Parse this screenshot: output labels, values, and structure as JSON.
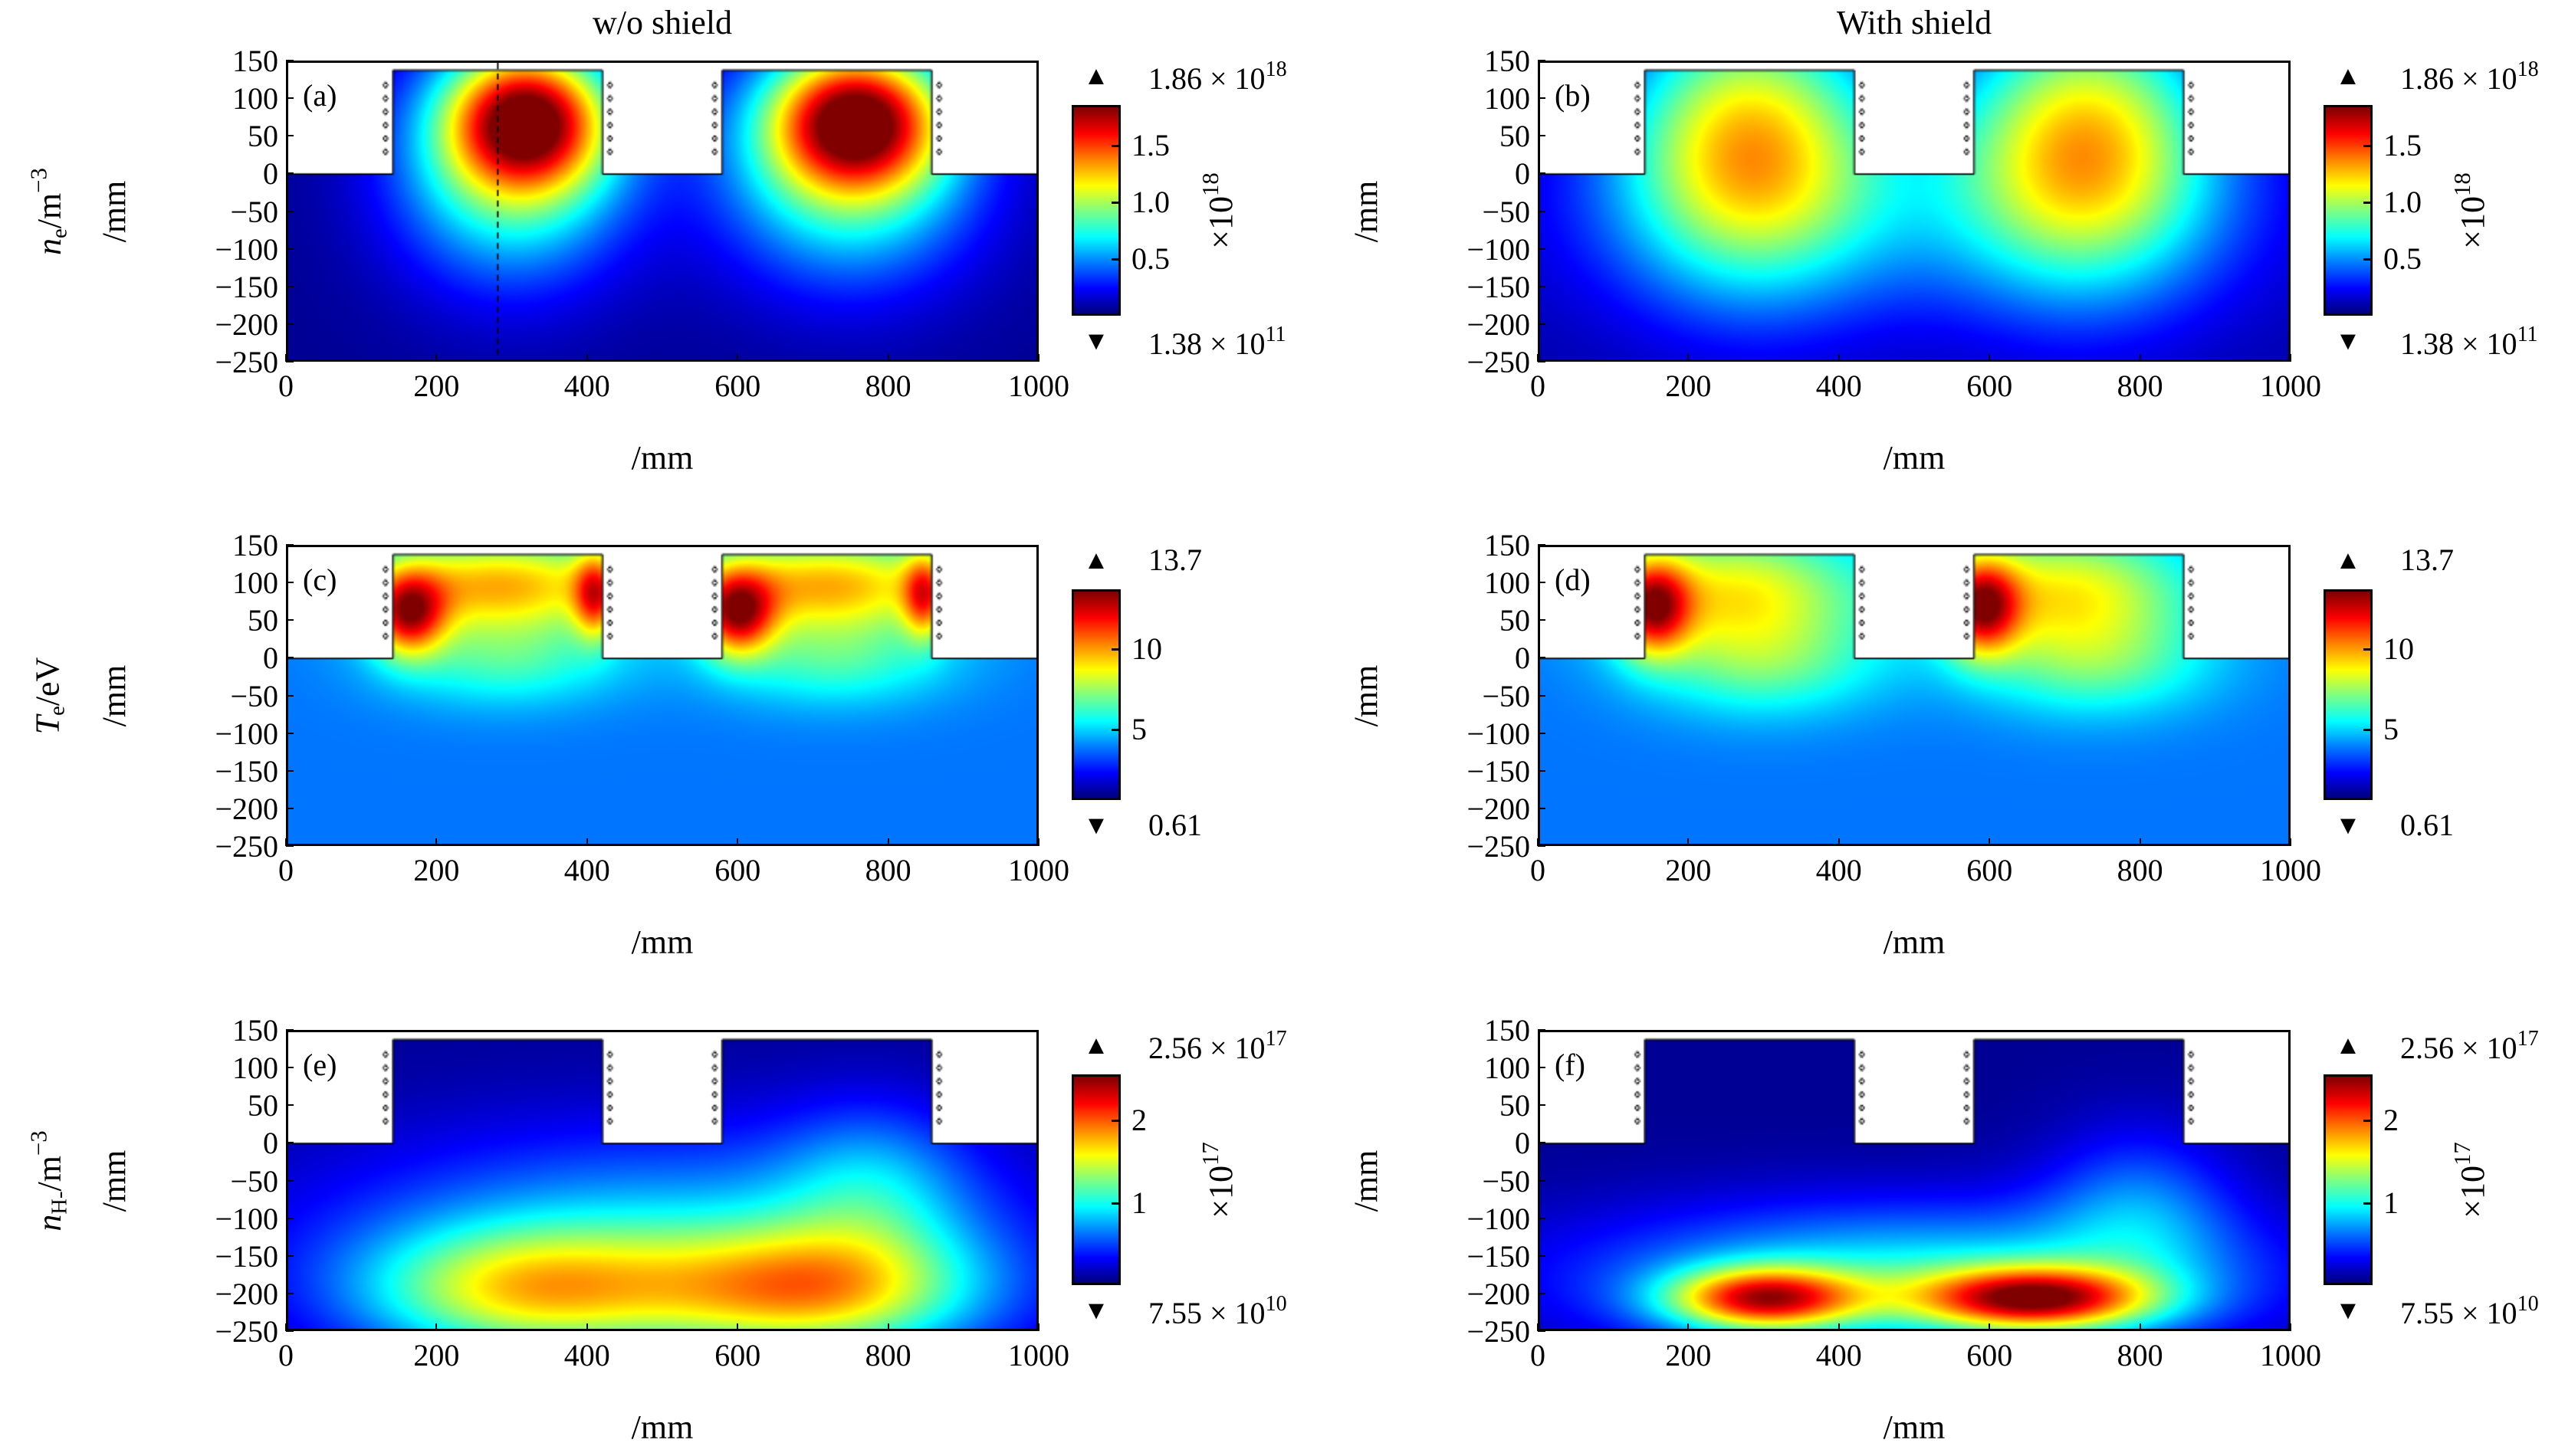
{
  "columns": [
    "w/o shield",
    "With shield"
  ],
  "row_labels": [
    {
      "sym": "n",
      "sub": "e",
      "unit": "/m",
      "exp": "−3"
    },
    {
      "sym": "T",
      "sub": "e",
      "unit": "/eV",
      "exp": ""
    },
    {
      "sym": "n",
      "sub": "H-",
      "unit": "/m",
      "exp": "−3"
    }
  ],
  "axis_label": "/mm",
  "chart_data": {
    "type": "heatmap",
    "xlim": [
      0,
      1000
    ],
    "ylim": [
      -250,
      150
    ],
    "xticks": [
      "0",
      "200",
      "400",
      "600",
      "800",
      "1000"
    ],
    "yticks": [
      "150",
      "100",
      "50",
      "0",
      "−50",
      "−100",
      "−150",
      "−200",
      "−250"
    ],
    "xlabel": "/mm",
    "ylabel": "/mm",
    "colormap": "jet",
    "chambers_mm": [
      [
        140,
        420
      ],
      [
        580,
        860
      ]
    ],
    "chamber_top_mm": 140,
    "coil_x_mm": [
      130,
      430,
      570,
      870
    ],
    "dashed_line_x_mm": 280,
    "panels": [
      {
        "label": "(a)",
        "quantity": "n_e",
        "colorbar": {
          "max": "1.86",
          "max_exp": "18",
          "min": "1.38",
          "min_exp": "11",
          "ticks": [
            "0.5",
            "1.0",
            "1.5"
          ],
          "tick_values": [
            0.5,
            1.0,
            1.5
          ],
          "vmax": 1.86,
          "vmin": 0,
          "mult": "×10",
          "mult_exp": "18"
        },
        "base": 0.02,
        "blobs": [
          {
            "x": 320,
            "y": 75,
            "sx": 75,
            "sy": 65,
            "a": 0.75
          },
          {
            "x": 760,
            "y": 75,
            "sx": 80,
            "sy": 65,
            "a": 0.75
          },
          {
            "x": 300,
            "y": 10,
            "sx": 110,
            "sy": 110,
            "a": 0.45
          },
          {
            "x": 750,
            "y": 10,
            "sx": 120,
            "sy": 110,
            "a": 0.45
          }
        ],
        "dashed": true
      },
      {
        "label": "(b)",
        "quantity": "n_e",
        "colorbar": {
          "max": "1.86",
          "max_exp": "18",
          "min": "1.38",
          "min_exp": "11",
          "ticks": [
            "0.5",
            "1.0",
            "1.5"
          ],
          "tick_values": [
            0.5,
            1.0,
            1.5
          ],
          "vmax": 1.86,
          "vmin": 0,
          "mult": "×10",
          "mult_exp": "18"
        },
        "base": 0.04,
        "blobs": [
          {
            "x": 280,
            "y": 40,
            "sx": 120,
            "sy": 130,
            "a": 0.62
          },
          {
            "x": 730,
            "y": 40,
            "sx": 120,
            "sy": 130,
            "a": 0.62
          },
          {
            "x": 500,
            "y": -60,
            "sx": 320,
            "sy": 100,
            "a": 0.15
          }
        ],
        "dashed": false
      },
      {
        "label": "(c)",
        "quantity": "T_e",
        "colorbar": {
          "max": "13.7",
          "max_exp": "",
          "min": "0.61",
          "min_exp": "",
          "ticks": [
            "5",
            "10"
          ],
          "tick_values": [
            5,
            10
          ],
          "vmax": 13.7,
          "vmin": 0.61,
          "mult": "",
          "mult_exp": ""
        },
        "base": 0.24,
        "blobs": [
          {
            "x": 160,
            "y": 60,
            "sx": 35,
            "sy": 40,
            "a": 0.55
          },
          {
            "x": 600,
            "y": 60,
            "sx": 35,
            "sy": 40,
            "a": 0.55
          },
          {
            "x": 280,
            "y": 100,
            "sx": 130,
            "sy": 45,
            "a": 0.45
          },
          {
            "x": 720,
            "y": 100,
            "sx": 130,
            "sy": 45,
            "a": 0.45
          },
          {
            "x": 410,
            "y": 85,
            "sx": 20,
            "sy": 40,
            "a": 0.4
          },
          {
            "x": 850,
            "y": 85,
            "sx": 20,
            "sy": 40,
            "a": 0.4
          },
          {
            "x": 290,
            "y": 0,
            "sx": 110,
            "sy": 45,
            "a": 0.2
          },
          {
            "x": 730,
            "y": 0,
            "sx": 110,
            "sy": 45,
            "a": 0.2
          }
        ],
        "dashed": false
      },
      {
        "label": "(d)",
        "quantity": "T_e",
        "colorbar": {
          "max": "13.7",
          "max_exp": "",
          "min": "0.61",
          "min_exp": "",
          "ticks": [
            "5",
            "10"
          ],
          "tick_values": [
            5,
            10
          ],
          "vmax": 13.7,
          "vmin": 0.61,
          "mult": "",
          "mult_exp": ""
        },
        "base": 0.24,
        "blobs": [
          {
            "x": 150,
            "y": 70,
            "sx": 35,
            "sy": 45,
            "a": 0.55
          },
          {
            "x": 590,
            "y": 70,
            "sx": 35,
            "sy": 45,
            "a": 0.55
          },
          {
            "x": 260,
            "y": 90,
            "sx": 120,
            "sy": 60,
            "a": 0.38
          },
          {
            "x": 700,
            "y": 90,
            "sx": 120,
            "sy": 60,
            "a": 0.38
          },
          {
            "x": 300,
            "y": -10,
            "sx": 110,
            "sy": 50,
            "a": 0.2
          },
          {
            "x": 740,
            "y": -10,
            "sx": 110,
            "sy": 50,
            "a": 0.2
          }
        ],
        "dashed": false
      },
      {
        "label": "(e)",
        "quantity": "n_H-",
        "colorbar": {
          "max": "2.56",
          "max_exp": "17",
          "min": "7.55",
          "min_exp": "10",
          "ticks": [
            "1",
            "2"
          ],
          "tick_values": [
            1,
            2
          ],
          "vmax": 2.56,
          "vmin": 0,
          "mult": "×10",
          "mult_exp": "17"
        },
        "base": 0.02,
        "blobs": [
          {
            "x": 320,
            "y": -200,
            "sx": 150,
            "sy": 60,
            "a": 0.45
          },
          {
            "x": 700,
            "y": -200,
            "sx": 150,
            "sy": 60,
            "a": 0.5
          },
          {
            "x": 500,
            "y": -140,
            "sx": 330,
            "sy": 110,
            "a": 0.3
          },
          {
            "x": 780,
            "y": -60,
            "sx": 90,
            "sy": 80,
            "a": 0.2
          }
        ],
        "dashed": false
      },
      {
        "label": "(f)",
        "quantity": "n_H-",
        "colorbar": {
          "max": "2.56",
          "max_exp": "17",
          "min": "7.55",
          "min_exp": "10",
          "ticks": [
            "1",
            "2"
          ],
          "tick_values": [
            1,
            2
          ],
          "vmax": 2.56,
          "vmin": 0,
          "mult": "×10",
          "mult_exp": "17"
        },
        "base": 0.02,
        "blobs": [
          {
            "x": 300,
            "y": -210,
            "sx": 90,
            "sy": 30,
            "a": 0.7
          },
          {
            "x": 660,
            "y": -210,
            "sx": 110,
            "sy": 30,
            "a": 0.75
          },
          {
            "x": 500,
            "y": -180,
            "sx": 320,
            "sy": 70,
            "a": 0.35
          },
          {
            "x": 800,
            "y": -90,
            "sx": 90,
            "sy": 80,
            "a": 0.2
          }
        ],
        "dashed": false
      }
    ]
  }
}
